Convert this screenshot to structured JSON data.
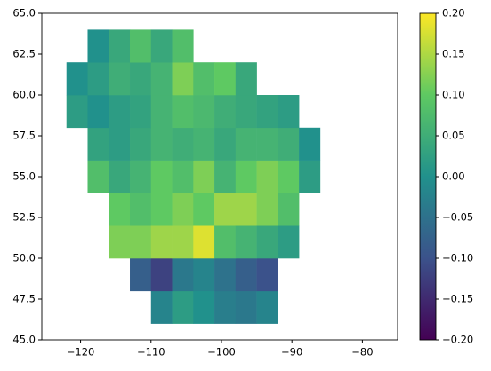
{
  "chart_data": {
    "type": "heatmap",
    "colormap": "viridis",
    "xlim": [
      -125.5,
      -75
    ],
    "ylim": [
      45,
      65
    ],
    "xticks": [
      {
        "value": -120,
        "label": "−120"
      },
      {
        "value": -110,
        "label": "−110"
      },
      {
        "value": -100,
        "label": "−100"
      },
      {
        "value": -90,
        "label": "−90"
      },
      {
        "value": -80,
        "label": "−80"
      }
    ],
    "yticks": [
      {
        "value": 45,
        "label": "45.0"
      },
      {
        "value": 47.5,
        "label": "47.5"
      },
      {
        "value": 50,
        "label": "50.0"
      },
      {
        "value": 52.5,
        "label": "52.5"
      },
      {
        "value": 55,
        "label": "55.0"
      },
      {
        "value": 57.5,
        "label": "57.5"
      },
      {
        "value": 60,
        "label": "60.0"
      },
      {
        "value": 62.5,
        "label": "62.5"
      },
      {
        "value": 65,
        "label": "65.0"
      }
    ],
    "clim": [
      -0.2,
      0.2
    ],
    "cticks": [
      {
        "value": -0.2,
        "label": "−0.20"
      },
      {
        "value": -0.15,
        "label": "−0.15"
      },
      {
        "value": -0.1,
        "label": "−0.10"
      },
      {
        "value": -0.05,
        "label": "−0.05"
      },
      {
        "value": 0,
        "label": "0.00"
      },
      {
        "value": 0.05,
        "label": "0.05"
      },
      {
        "value": 0.1,
        "label": "0.10"
      },
      {
        "value": 0.15,
        "label": "0.15"
      },
      {
        "value": 0.2,
        "label": "0.20"
      }
    ],
    "x_edges": [
      -122,
      -119,
      -116,
      -113,
      -110,
      -107,
      -104,
      -101,
      -98,
      -95,
      -92,
      -89,
      -86
    ],
    "y_edges": [
      46,
      48,
      50,
      52,
      54,
      56,
      58,
      60,
      62,
      64
    ],
    "values": [
      [
        null,
        null,
        null,
        null,
        -0.02,
        0.02,
        0.0,
        -0.03,
        -0.04,
        -0.02,
        null,
        null
      ],
      [
        null,
        null,
        null,
        -0.08,
        -0.12,
        -0.04,
        -0.02,
        -0.05,
        -0.08,
        -0.1,
        null,
        null
      ],
      [
        null,
        null,
        0.12,
        0.12,
        0.14,
        0.14,
        0.18,
        0.08,
        0.06,
        0.04,
        0.02,
        null
      ],
      [
        null,
        null,
        0.1,
        0.08,
        0.1,
        0.12,
        0.1,
        0.14,
        0.14,
        0.12,
        0.08,
        null
      ],
      [
        null,
        0.08,
        0.04,
        0.06,
        0.1,
        0.08,
        0.12,
        0.06,
        0.1,
        0.12,
        0.1,
        0.02
      ],
      [
        null,
        0.03,
        0.02,
        0.04,
        0.06,
        0.05,
        0.06,
        0.04,
        0.06,
        0.06,
        0.05,
        0.0
      ],
      [
        0.02,
        0.0,
        0.02,
        0.03,
        0.06,
        0.08,
        0.07,
        0.05,
        0.04,
        0.03,
        0.02,
        null
      ],
      [
        0.0,
        0.02,
        0.05,
        0.04,
        0.06,
        0.12,
        0.08,
        0.1,
        0.04,
        null,
        null,
        null
      ],
      [
        null,
        0.0,
        0.04,
        0.08,
        0.04,
        0.08,
        null,
        null,
        null,
        null,
        null,
        null
      ]
    ]
  }
}
